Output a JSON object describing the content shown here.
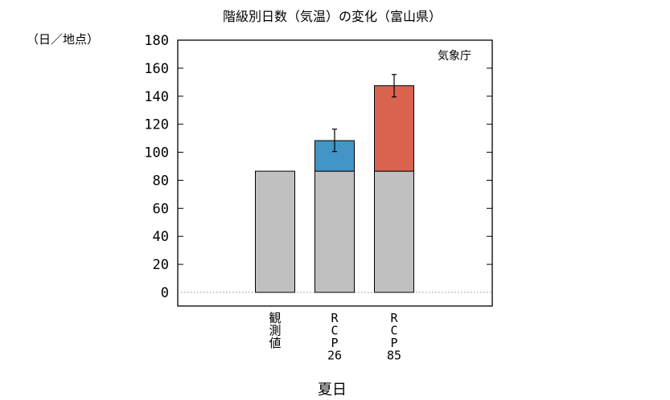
{
  "chart_data": {
    "type": "bar",
    "title": "階級別日数（気温）の変化（富山県）",
    "unit_label": "（日／地点）",
    "credit": "気象庁",
    "xlabel": "夏日",
    "ylim": [
      0,
      180
    ],
    "yticks": [
      0,
      20,
      40,
      60,
      80,
      100,
      120,
      140,
      160,
      180
    ],
    "baseline_style": "dotted",
    "grid": false,
    "categories": [
      "観測値",
      "RCP26",
      "RCP85"
    ],
    "category_label_lines": [
      [
        "観",
        "測",
        "値"
      ],
      [
        "R",
        "C",
        "P",
        "26"
      ],
      [
        "R",
        "C",
        "P",
        "85"
      ]
    ],
    "series": [
      {
        "name": "",
        "color": "#c0c0c0",
        "values": [
          86.5,
          86.5,
          86.5
        ]
      },
      {
        "name": "",
        "color": "#4395c6",
        "values": [
          null,
          21.8,
          null
        ]
      },
      {
        "name": "",
        "color": "#da6350",
        "values": [
          null,
          null,
          61
        ]
      }
    ],
    "error_bars": [
      null,
      {
        "low": 100.5,
        "high": 116.5
      },
      {
        "low": 139.5,
        "high": 155.5
      }
    ]
  }
}
